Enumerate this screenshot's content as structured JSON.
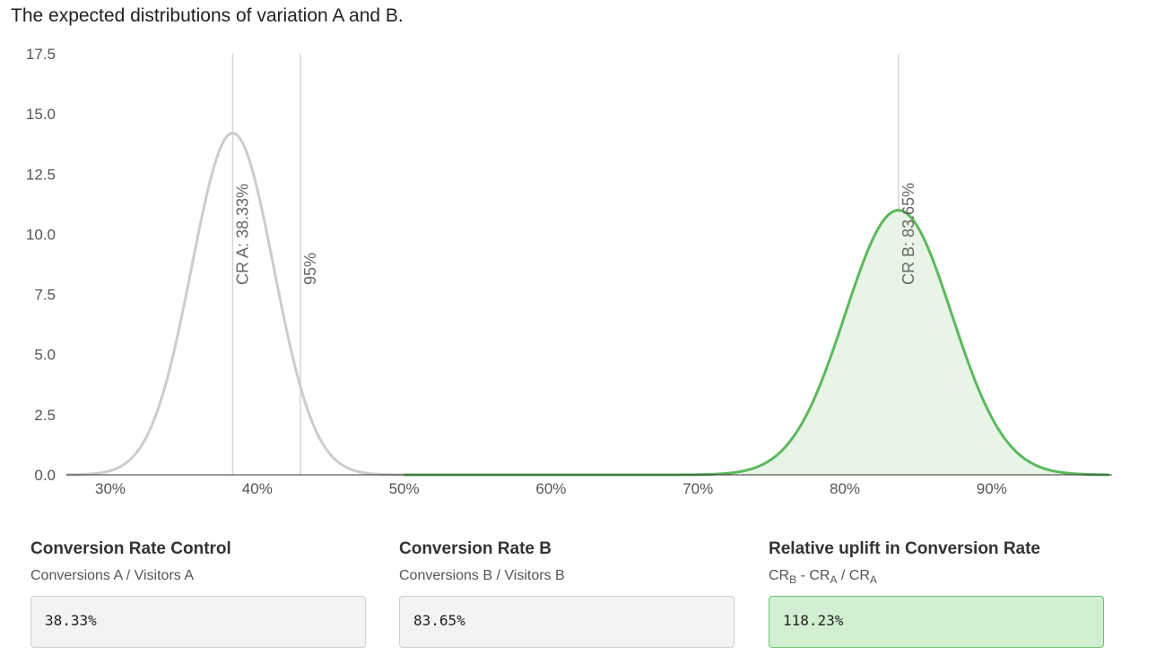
{
  "header": {
    "title": "The expected distributions of variation A and B."
  },
  "chart_data": {
    "type": "area",
    "title": "The expected distributions of variation A and B.",
    "xlabel": "",
    "ylabel": "",
    "xlim": [
      0.27,
      0.98
    ],
    "ylim": [
      0,
      17.5
    ],
    "x_ticks": [
      0.3,
      0.4,
      0.5,
      0.6,
      0.7,
      0.8,
      0.9
    ],
    "x_tick_labels": [
      "30%",
      "40%",
      "50%",
      "60%",
      "70%",
      "80%",
      "90%"
    ],
    "y_ticks": [
      0,
      2.5,
      5,
      7.5,
      10,
      12.5,
      15,
      17.5
    ],
    "y_tick_labels": [
      "0.0",
      "2.5",
      "5.0",
      "7.5",
      "10.0",
      "12.5",
      "15.0",
      "17.5"
    ],
    "series": [
      {
        "mean": 0.3833,
        "sd": 0.028,
        "peak": 14.2,
        "x_range": [
          0.27,
          0.5
        ],
        "color": "#cccccc",
        "filled": false
      },
      {
        "mean": 0.8365,
        "sd": 0.0363,
        "peak": 11.0,
        "x_range": [
          0.5,
          0.98
        ],
        "color": "#5cb85c",
        "fill": "#e8f5e6",
        "filled": true
      }
    ],
    "reference_lines": [
      {
        "x": 0.3833,
        "label": "CR A: 38.33%"
      },
      {
        "x": 0.4294,
        "label": "95%"
      },
      {
        "x": 0.8365,
        "label": "CR B: 83.65%"
      }
    ]
  },
  "metrics": [
    {
      "title": "Conversion Rate Control",
      "sub": "Conversions A / Visitors A",
      "value": "38.33%"
    },
    {
      "title": "Conversion Rate B",
      "sub": "Conversions B / Visitors B",
      "value": "83.65%"
    },
    {
      "title": "Relative uplift in Conversion Rate",
      "sub_parts": [
        "CR",
        "B",
        " - CR",
        "A",
        " / CR",
        "A"
      ],
      "value": "118.23%"
    }
  ]
}
